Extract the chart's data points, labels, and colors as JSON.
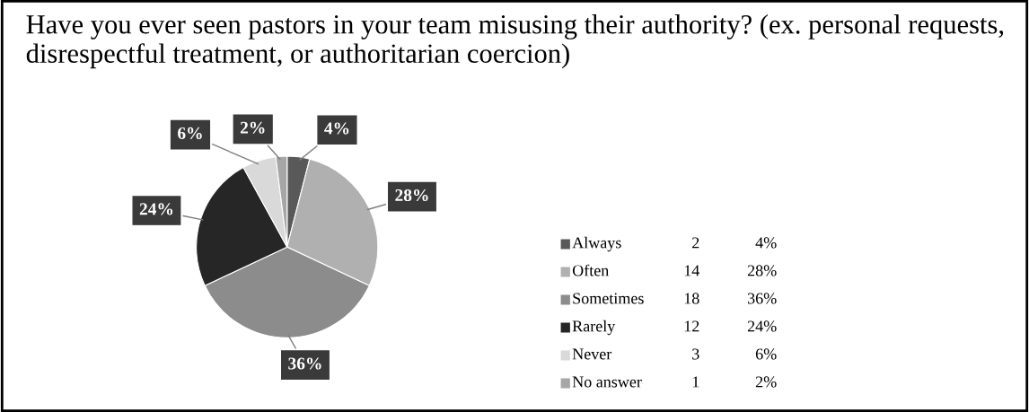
{
  "chart_data": {
    "type": "pie",
    "title": "Have you ever seen pastors in your team misusing their authority? (ex. personal requests, disrespectful treatment, or authoritarian coercion)",
    "categories": [
      "Always",
      "Often",
      "Sometimes",
      "Rarely",
      "Never",
      "No answer"
    ],
    "values": [
      4,
      28,
      36,
      24,
      6,
      2
    ],
    "annotations": [
      "2",
      "14",
      "18",
      "12",
      "3",
      "1"
    ],
    "value_labels": [
      "4%",
      "28%",
      "36%",
      "24%",
      "6%",
      "2%"
    ],
    "colors": [
      "#595959",
      "#b0b0b0",
      "#8c8c8c",
      "#262626",
      "#d9d9d9",
      "#a6a6a6"
    ],
    "legend": "right"
  }
}
